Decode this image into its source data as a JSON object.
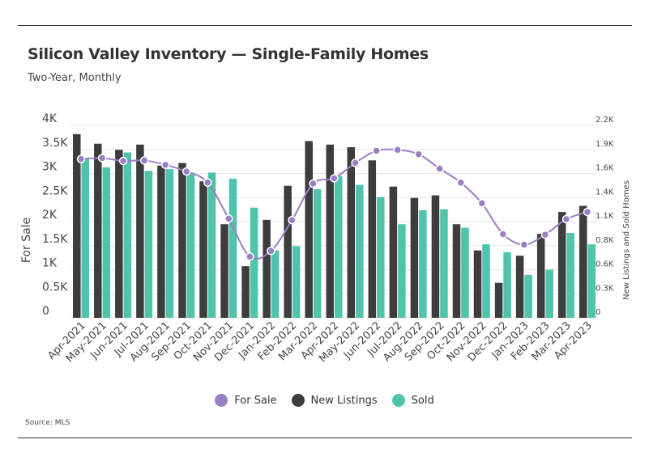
{
  "header": {
    "title": "Silicon Valley Inventory — Single-Family Homes",
    "subtitle": "Two-Year, Monthly"
  },
  "footer": {
    "source": "Source: MLS"
  },
  "colors": {
    "for_sale": "#9b7fc4",
    "new_listings": "#3d3d3d",
    "sold": "#4fc3ab",
    "grid": "#e6e6e6",
    "axis_text": "#444444"
  },
  "chart_data": {
    "type": "bar",
    "categories": [
      "Apr-2021",
      "May-2021",
      "Jun-2021",
      "Jul-2021",
      "Aug-2021",
      "Sep-2021",
      "Oct-2021",
      "Nov-2021",
      "Dec-2021",
      "Jan-2022",
      "Feb-2022",
      "Mar-2022",
      "Apr-2022",
      "May-2022",
      "Jun-2022",
      "Jul-2022",
      "Aug-2022",
      "Sep-2022",
      "Oct-2022",
      "Nov-2022",
      "Dec-2022",
      "Jan-2023",
      "Feb-2023",
      "Mar-2023",
      "Apr-2023"
    ],
    "series": [
      {
        "name": "For Sale",
        "type": "line",
        "axis": "left",
        "values": [
          3300,
          3320,
          3260,
          3270,
          3180,
          3040,
          2810,
          2060,
          1270,
          1390,
          2030,
          2790,
          2900,
          3220,
          3470,
          3490,
          3400,
          3100,
          2810,
          2380,
          1740,
          1520,
          1730,
          2050,
          2200
        ]
      },
      {
        "name": "New Listings",
        "type": "bar",
        "axis": "right",
        "values": [
          2100,
          1990,
          1920,
          1980,
          1740,
          1770,
          1560,
          1070,
          590,
          1120,
          1510,
          2020,
          1980,
          1950,
          1800,
          1500,
          1370,
          1400,
          1070,
          770,
          400,
          710,
          960,
          1210,
          1280
        ]
      },
      {
        "name": "Sold",
        "type": "bar",
        "axis": "right",
        "values": [
          1830,
          1720,
          1890,
          1680,
          1700,
          1660,
          1660,
          1590,
          1260,
          770,
          820,
          1470,
          1620,
          1520,
          1380,
          1070,
          1230,
          1240,
          1030,
          840,
          750,
          490,
          550,
          970,
          840
        ]
      }
    ],
    "left_axis": {
      "label": "For Sale",
      "ylim": [
        0,
        4000
      ],
      "ticks": [
        "0",
        "0.5K",
        "1K",
        "1.5K",
        "2K",
        "2.5K",
        "3K",
        "3.5K",
        "4K"
      ]
    },
    "right_axis": {
      "label": "New Listings and Sold Homes",
      "ylim": [
        0,
        2200
      ],
      "ticks": [
        "0",
        "0.3K",
        "0.6K",
        "0.8K",
        "1.1K",
        "1.4K",
        "1.6K",
        "1.9K",
        "2.2K"
      ]
    },
    "grid": true,
    "legend": {
      "placement": "bottom-center",
      "entries": [
        "For Sale",
        "New Listings",
        "Sold"
      ]
    }
  }
}
